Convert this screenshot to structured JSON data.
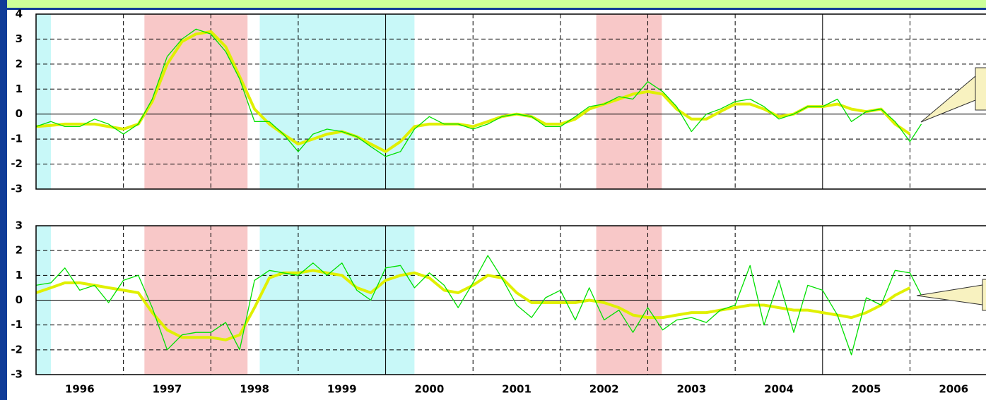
{
  "chart_data": [
    {
      "type": "line",
      "x": [
        1996,
        1996.17,
        1996.33,
        1996.5,
        1996.67,
        1996.83,
        1997,
        1997.17,
        1997.33,
        1997.5,
        1997.67,
        1997.83,
        1998,
        1998.17,
        1998.33,
        1998.5,
        1998.67,
        1998.83,
        1999,
        1999.17,
        1999.33,
        1999.5,
        1999.67,
        1999.83,
        2000,
        2000.17,
        2000.33,
        2000.5,
        2000.67,
        2000.83,
        2001,
        2001.17,
        2001.33,
        2001.5,
        2001.67,
        2001.83,
        2002,
        2002.17,
        2002.33,
        2002.5,
        2002.67,
        2002.83,
        2003,
        2003.17,
        2003.33,
        2003.5,
        2003.67,
        2003.83,
        2004,
        2004.17,
        2004.33,
        2004.5,
        2004.67,
        2004.83,
        2005,
        2005.17,
        2005.33,
        2005.5,
        2005.67,
        2005.83,
        2006,
        2006.13
      ],
      "series": [
        {
          "color": "#e0f000",
          "line_width": 4,
          "values": [
            -0.5,
            -0.45,
            -0.4,
            -0.4,
            -0.4,
            -0.5,
            -0.6,
            -0.4,
            0.5,
            2.0,
            2.9,
            3.2,
            3.3,
            2.7,
            1.5,
            0.2,
            -0.4,
            -0.8,
            -1.2,
            -1.0,
            -0.8,
            -0.7,
            -0.9,
            -1.2,
            -1.5,
            -1.1,
            -0.5,
            -0.4,
            -0.4,
            -0.4,
            -0.5,
            -0.3,
            -0.1,
            0.0,
            -0.1,
            -0.4,
            -0.4,
            -0.2,
            0.2,
            0.4,
            0.6,
            0.8,
            0.9,
            0.8,
            0.2,
            -0.2,
            -0.2,
            0.1,
            0.4,
            0.4,
            0.2,
            -0.1,
            0.0,
            0.3,
            0.3,
            0.4,
            0.2,
            0.1,
            0.2,
            -0.4,
            -0.8,
            null
          ]
        },
        {
          "color": "#00e000",
          "line_width": 1.3,
          "values": [
            -0.5,
            -0.3,
            -0.5,
            -0.5,
            -0.2,
            -0.4,
            -0.8,
            -0.4,
            0.6,
            2.3,
            3.0,
            3.4,
            3.2,
            2.5,
            1.4,
            -0.3,
            -0.3,
            -0.8,
            -1.5,
            -0.8,
            -0.6,
            -0.7,
            -0.9,
            -1.3,
            -1.7,
            -1.5,
            -0.6,
            -0.1,
            -0.4,
            -0.4,
            -0.6,
            -0.4,
            -0.1,
            0.0,
            -0.1,
            -0.5,
            -0.5,
            -0.1,
            0.3,
            0.4,
            0.7,
            0.6,
            1.3,
            0.9,
            0.3,
            -0.7,
            0.0,
            0.2,
            0.5,
            0.6,
            0.3,
            -0.2,
            0.0,
            0.3,
            0.3,
            0.6,
            -0.3,
            0.1,
            0.2,
            -0.3,
            -1.1,
            -0.4
          ]
        }
      ],
      "xlim": [
        1996,
        2006.87
      ],
      "ylim": [
        -3,
        4
      ],
      "yticks": [
        -3,
        -2,
        -1,
        0,
        1,
        2,
        3,
        4
      ],
      "grid": true,
      "x_gridlines": [
        1997,
        1998,
        1999,
        2001,
        2002,
        2003,
        2004,
        2006
      ],
      "x_solid_lines": [
        2000,
        2005
      ],
      "shaded_periods": [
        {
          "start": 1996,
          "end": 1996.17,
          "color": "#c8f8f8"
        },
        {
          "start": 1997.24,
          "end": 1998.42,
          "color": "#f8c8c8"
        },
        {
          "start": 1998.56,
          "end": 2000.33,
          "color": "#c8f8f8"
        },
        {
          "start": 2002.41,
          "end": 2003.16,
          "color": "#f8c8c8"
        }
      ]
    },
    {
      "type": "line",
      "x": [
        1996,
        1996.17,
        1996.33,
        1996.5,
        1996.67,
        1996.83,
        1997,
        1997.17,
        1997.33,
        1997.5,
        1997.67,
        1997.83,
        1998,
        1998.17,
        1998.33,
        1998.5,
        1998.67,
        1998.83,
        1999,
        1999.17,
        1999.33,
        1999.5,
        1999.67,
        1999.83,
        2000,
        2000.17,
        2000.33,
        2000.5,
        2000.67,
        2000.83,
        2001,
        2001.17,
        2001.33,
        2001.5,
        2001.67,
        2001.83,
        2002,
        2002.17,
        2002.33,
        2002.5,
        2002.67,
        2002.83,
        2003,
        2003.17,
        2003.33,
        2003.5,
        2003.67,
        2003.83,
        2004,
        2004.17,
        2004.33,
        2004.5,
        2004.67,
        2004.83,
        2005,
        2005.17,
        2005.33,
        2005.5,
        2005.67,
        2005.83,
        2006,
        2006.13
      ],
      "series": [
        {
          "color": "#e0f000",
          "line_width": 4,
          "values": [
            0.3,
            0.5,
            0.7,
            0.7,
            0.6,
            0.5,
            0.4,
            0.3,
            -0.5,
            -1.2,
            -1.5,
            -1.5,
            -1.5,
            -1.6,
            -1.4,
            -0.3,
            0.9,
            1.1,
            1.1,
            1.2,
            1.1,
            1.0,
            0.5,
            0.3,
            0.8,
            1.0,
            1.1,
            0.9,
            0.4,
            0.3,
            0.6,
            1.0,
            0.9,
            0.3,
            -0.1,
            -0.1,
            -0.1,
            -0.1,
            0.0,
            -0.1,
            -0.3,
            -0.6,
            -0.7,
            -0.7,
            -0.6,
            -0.5,
            -0.5,
            -0.4,
            -0.3,
            -0.2,
            -0.2,
            -0.3,
            -0.4,
            -0.4,
            -0.5,
            -0.6,
            -0.7,
            -0.5,
            -0.2,
            0.2,
            0.5,
            null
          ]
        },
        {
          "color": "#00e000",
          "line_width": 1.3,
          "values": [
            0.6,
            0.7,
            1.3,
            0.4,
            0.6,
            -0.1,
            0.8,
            1.0,
            -0.3,
            -2.0,
            -1.4,
            -1.3,
            -1.3,
            -0.9,
            -2.0,
            0.8,
            1.2,
            1.1,
            1.0,
            1.5,
            1.0,
            1.5,
            0.4,
            0.0,
            1.3,
            1.4,
            0.5,
            1.1,
            0.6,
            -0.3,
            0.7,
            1.8,
            0.9,
            -0.2,
            -0.7,
            0.1,
            0.4,
            -0.8,
            0.5,
            -0.8,
            -0.4,
            -1.3,
            -0.3,
            -1.2,
            -0.8,
            -0.7,
            -0.9,
            -0.4,
            -0.2,
            1.4,
            -1.0,
            0.8,
            -1.3,
            0.6,
            0.4,
            -0.6,
            -2.2,
            0.1,
            -0.2,
            1.2,
            1.1,
            0.2
          ]
        }
      ],
      "xlim": [
        1996,
        2006.87
      ],
      "ylim": [
        -3,
        3
      ],
      "yticks": [
        -3,
        -2,
        -1,
        0,
        1,
        2,
        3
      ],
      "grid": true,
      "xticks": [
        {
          "value": 1996.5,
          "label": "1996"
        },
        {
          "value": 1997.5,
          "label": "1997"
        },
        {
          "value": 1998.5,
          "label": "1998"
        },
        {
          "value": 1999.5,
          "label": "1999"
        },
        {
          "value": 2000.5,
          "label": "2000"
        },
        {
          "value": 2001.5,
          "label": "2001"
        },
        {
          "value": 2002.5,
          "label": "2002"
        },
        {
          "value": 2003.5,
          "label": "2003"
        },
        {
          "value": 2004.5,
          "label": "2004"
        },
        {
          "value": 2005.5,
          "label": "2005"
        },
        {
          "value": 2006.5,
          "label": "2006"
        }
      ],
      "x_gridlines": [
        1997,
        1998,
        1999,
        2001,
        2002,
        2003,
        2004,
        2006
      ],
      "x_solid_lines": [
        2000,
        2005
      ],
      "shaded_periods": [
        {
          "start": 1996,
          "end": 1996.17,
          "color": "#c8f8f8"
        },
        {
          "start": 1997.24,
          "end": 1998.42,
          "color": "#f8c8c8"
        },
        {
          "start": 1998.56,
          "end": 2000.33,
          "color": "#c8f8f8"
        },
        {
          "start": 2002.41,
          "end": 2003.16,
          "color": "#f8c8c8"
        }
      ]
    }
  ]
}
